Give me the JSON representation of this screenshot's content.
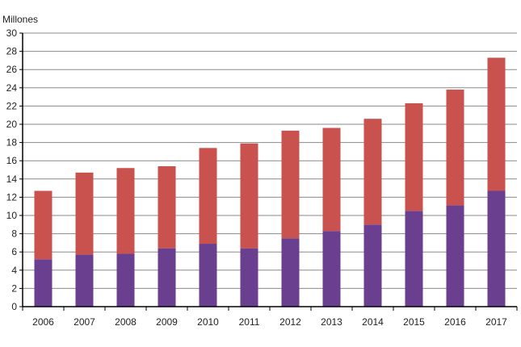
{
  "chart_data": {
    "type": "bar",
    "stacked": true,
    "unit_label": "Millones",
    "categories": [
      "2006",
      "2007",
      "2008",
      "2009",
      "2010",
      "2011",
      "2012",
      "2013",
      "2014",
      "2015",
      "2016",
      "2017"
    ],
    "series": [
      {
        "values": [
          5.2,
          5.7,
          5.8,
          6.4,
          6.9,
          6.4,
          7.5,
          8.3,
          9.0,
          10.5,
          11.1,
          12.7
        ],
        "color": "#6b3f8f"
      },
      {
        "values": [
          7.5,
          9.0,
          9.4,
          9.0,
          10.5,
          11.5,
          11.8,
          11.3,
          11.6,
          11.8,
          12.7,
          14.6
        ],
        "color": "#c9514e"
      }
    ],
    "ylim": [
      0,
      30
    ],
    "yticks": [
      "0",
      "2",
      "4",
      "6",
      "8",
      "10",
      "12",
      "14",
      "16",
      "18",
      "20",
      "22",
      "24",
      "26",
      "28",
      "30"
    ],
    "grid": true,
    "legend": "none"
  }
}
